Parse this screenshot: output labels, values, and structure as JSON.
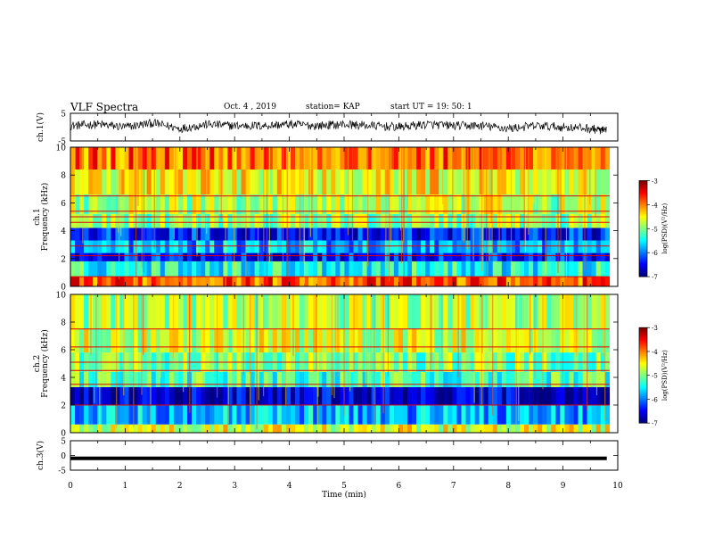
{
  "header": {
    "title": "VLF Spectra",
    "date": "Oct. 4 , 2019",
    "station": "station= KAP",
    "start": "start  UT =   19: 50: 1"
  },
  "chart_data": [
    {
      "type": "line",
      "ylabel": "ch.1(V)",
      "ylim": [
        -5,
        5
      ],
      "yticks": [
        5,
        -5
      ],
      "x": [
        0,
        0.5,
        1,
        1.5,
        2,
        2.5,
        3,
        3.5,
        4,
        4.5,
        5,
        5.5,
        6,
        6.5,
        7,
        7.5,
        8,
        8.5,
        9,
        9.5,
        9.8
      ],
      "y": [
        0.5,
        1,
        0,
        1.5,
        -0.5,
        1,
        0.5,
        0.5,
        1,
        0.5,
        1,
        0.5,
        0,
        1,
        0.5,
        0.5,
        -0.5,
        0.5,
        0,
        -0.5,
        -1.5
      ]
    },
    {
      "type": "heatmap",
      "ylabel": "ch.1\nFrequency (kHz)",
      "ylim": [
        0,
        10
      ],
      "yticks": [
        0,
        2,
        4,
        6,
        8,
        10
      ],
      "bands": [
        {
          "from": 0,
          "to": 0.7,
          "value": -3.8
        },
        {
          "from": 0.7,
          "to": 1.8,
          "value": -5.4
        },
        {
          "from": 1.8,
          "to": 2.4,
          "value": -6.4
        },
        {
          "from": 2.4,
          "to": 3.3,
          "value": -5.8
        },
        {
          "from": 3.3,
          "to": 4.2,
          "value": -6.4
        },
        {
          "from": 4.2,
          "to": 5.2,
          "value": -5.0
        },
        {
          "from": 5.2,
          "to": 6.6,
          "value": -4.8
        },
        {
          "from": 6.6,
          "to": 8.4,
          "value": -4.5
        },
        {
          "from": 8.4,
          "to": 10,
          "value": -3.9
        }
      ],
      "lines": [
        0.7,
        2.2,
        2.9,
        4.6,
        5.0,
        5.4,
        6.5
      ],
      "colorbar": {
        "label": "log(PSD)(V²/Hz)",
        "ticks": [
          -3,
          -4,
          -5,
          -6,
          -7
        ]
      }
    },
    {
      "type": "heatmap",
      "ylabel": "ch.2\nFrequency (kHz)",
      "ylim": [
        0,
        10
      ],
      "yticks": [
        0,
        2,
        4,
        6,
        8,
        10
      ],
      "bands": [
        {
          "from": 0,
          "to": 0.6,
          "value": -4.6
        },
        {
          "from": 0.6,
          "to": 2.0,
          "value": -5.8
        },
        {
          "from": 2.0,
          "to": 3.3,
          "value": -6.7
        },
        {
          "from": 3.3,
          "to": 4.4,
          "value": -5.2
        },
        {
          "from": 4.4,
          "to": 5.8,
          "value": -5.0
        },
        {
          "from": 5.8,
          "to": 7.5,
          "value": -4.7
        },
        {
          "from": 7.5,
          "to": 10,
          "value": -4.8
        }
      ],
      "lines": [
        2.0,
        3.5,
        4.5,
        5.1,
        6.2,
        7.5
      ],
      "colorbar": {
        "label": "log(PSD)(V²/Hz)",
        "ticks": [
          -3,
          -4,
          -5,
          -6,
          -7
        ]
      }
    },
    {
      "type": "line",
      "ylabel": "ch.3(V)",
      "xlabel": "Time (min)",
      "ylim": [
        -5,
        5
      ],
      "yticks": [
        5,
        0,
        -5
      ],
      "x": [
        0,
        9.8
      ],
      "y": [
        -1,
        -1
      ]
    }
  ],
  "x_axis": {
    "label": "Time (min)",
    "xlim": [
      0,
      10
    ],
    "ticks": [
      0,
      1,
      2,
      3,
      4,
      5,
      6,
      7,
      8,
      9,
      10
    ]
  }
}
